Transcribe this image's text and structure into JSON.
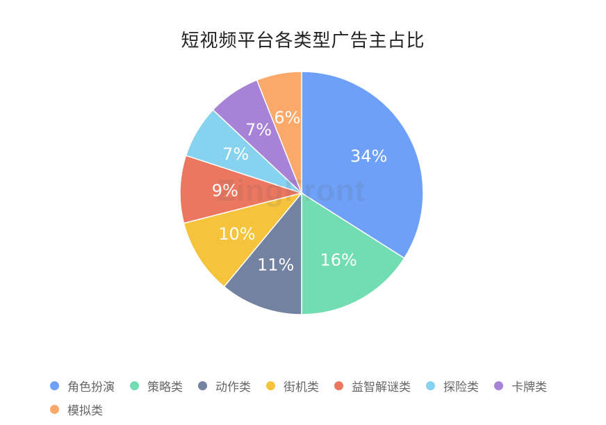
{
  "chart_data": {
    "type": "pie",
    "title": "短视频平台各类型广告主占比",
    "slices": [
      {
        "label": "角色扮演",
        "value": 34,
        "display": "34%",
        "color": "#6fa0f7"
      },
      {
        "label": "策略类",
        "value": 16,
        "display": "16%",
        "color": "#72ddb2"
      },
      {
        "label": "动作类",
        "value": 11,
        "display": "11%",
        "color": "#7382a0"
      },
      {
        "label": "街机类",
        "value": 10,
        "display": "10%",
        "color": "#f5c33c"
      },
      {
        "label": "益智解谜类",
        "value": 9,
        "display": "9%",
        "color": "#ec7760"
      },
      {
        "label": "探险类",
        "value": 7,
        "display": "7%",
        "color": "#86d2ef"
      },
      {
        "label": "卡牌类",
        "value": 7,
        "display": "7%",
        "color": "#a782d6"
      },
      {
        "label": "模拟类",
        "value": 6,
        "display": "6%",
        "color": "#fba96a"
      }
    ],
    "legend_position": "bottom"
  },
  "watermark": "ZingFront"
}
